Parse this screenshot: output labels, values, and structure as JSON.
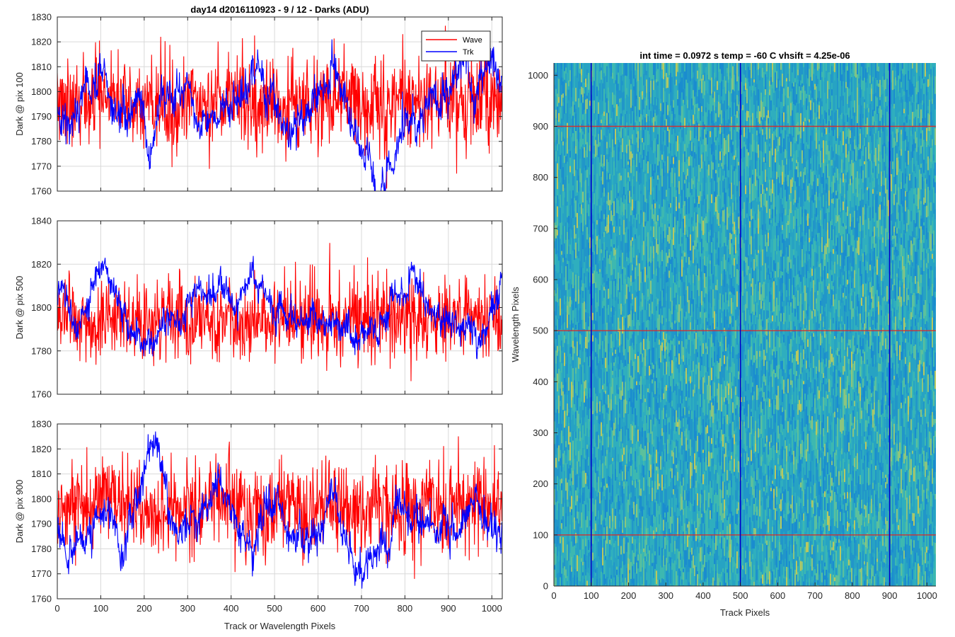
{
  "figure": {
    "suptitle": "day14 d2016110923 - 9 / 12 - Darks (ADU)",
    "heatmap_title": "int time = 0.0972 s    temp = -60 C    vhsift = 4.25e-06"
  },
  "colors": {
    "wave": "#ff0000",
    "trk": "#0000ff",
    "grid": "#d9d9d9",
    "heatmap_base": "#2a9fc6",
    "marker_h": "#d03030",
    "marker_v": "#0000c8"
  },
  "chart_data": [
    {
      "type": "line",
      "id": "top",
      "title": "day14 d2016110923 - 9 / 12 - Darks (ADU)",
      "xlabel": "",
      "ylabel": "Dark @ pix 100",
      "xlim": [
        0,
        1024
      ],
      "ylim": [
        1760,
        1830
      ],
      "xticks": [
        0,
        100,
        200,
        300,
        400,
        500,
        600,
        700,
        800,
        900,
        1000
      ],
      "yticks": [
        1760,
        1770,
        1780,
        1790,
        1800,
        1810,
        1820,
        1830
      ],
      "show_xtick_labels": false,
      "grid": true,
      "legend": {
        "placement": "top-right",
        "entries": [
          "Wave",
          "Trk"
        ]
      },
      "series": [
        {
          "name": "Wave",
          "color": "#ff0000",
          "mean": 1796,
          "noise": 9,
          "drift": 2,
          "min": 1761,
          "max": 1827,
          "seed": 11
        },
        {
          "name": "Trk",
          "color": "#0000ff",
          "mean": 1795,
          "noise": 3,
          "drift": 7,
          "min": 1760,
          "max": 1821,
          "seed": 23,
          "anchors": [
            [
              0,
              1795
            ],
            [
              40,
              1800
            ],
            [
              70,
              1803
            ],
            [
              100,
              1808
            ],
            [
              140,
              1795
            ],
            [
              170,
              1790
            ],
            [
              210,
              1778
            ],
            [
              240,
              1800
            ],
            [
              270,
              1790
            ],
            [
              300,
              1795
            ],
            [
              330,
              1785
            ],
            [
              380,
              1798
            ],
            [
              420,
              1790
            ],
            [
              460,
              1805
            ],
            [
              500,
              1795
            ],
            [
              550,
              1785
            ],
            [
              600,
              1800
            ],
            [
              640,
              1795
            ],
            [
              680,
              1790
            ],
            [
              720,
              1778
            ],
            [
              750,
              1770
            ],
            [
              780,
              1785
            ],
            [
              830,
              1795
            ],
            [
              880,
              1790
            ],
            [
              920,
              1810
            ],
            [
              960,
              1808
            ],
            [
              1000,
              1815
            ],
            [
              1024,
              1812
            ]
          ]
        }
      ]
    },
    {
      "type": "line",
      "id": "middle",
      "xlabel": "",
      "ylabel": "Dark @ pix 500",
      "xlim": [
        0,
        1024
      ],
      "ylim": [
        1760,
        1840
      ],
      "xticks": [
        0,
        100,
        200,
        300,
        400,
        500,
        600,
        700,
        800,
        900,
        1000
      ],
      "yticks": [
        1760,
        1780,
        1800,
        1820,
        1840
      ],
      "show_xtick_labels": false,
      "grid": true,
      "series": [
        {
          "name": "Wave",
          "color": "#ff0000",
          "mean": 1795,
          "noise": 9,
          "drift": 2,
          "min": 1762,
          "max": 1832,
          "seed": 37
        },
        {
          "name": "Trk",
          "color": "#0000ff",
          "mean": 1795,
          "noise": 3,
          "drift": 6,
          "min": 1768,
          "max": 1828,
          "seed": 41,
          "anchors": [
            [
              0,
              1800
            ],
            [
              50,
              1795
            ],
            [
              100,
              1818
            ],
            [
              130,
              1812
            ],
            [
              170,
              1790
            ],
            [
              210,
              1785
            ],
            [
              260,
              1790
            ],
            [
              300,
              1796
            ],
            [
              350,
              1790
            ],
            [
              400,
              1800
            ],
            [
              450,
              1815
            ],
            [
              500,
              1798
            ],
            [
              550,
              1790
            ],
            [
              600,
              1795
            ],
            [
              640,
              1790
            ],
            [
              700,
              1790
            ],
            [
              760,
              1795
            ],
            [
              800,
              1812
            ],
            [
              850,
              1800
            ],
            [
              900,
              1793
            ],
            [
              950,
              1790
            ],
            [
              990,
              1785
            ],
            [
              1024,
              1808
            ]
          ]
        }
      ]
    },
    {
      "type": "line",
      "id": "bottom",
      "xlabel": "Track or Wavelength Pixels",
      "ylabel": "Dark @ pix 900",
      "xlim": [
        0,
        1024
      ],
      "ylim": [
        1760,
        1830
      ],
      "xticks": [
        0,
        100,
        200,
        300,
        400,
        500,
        600,
        700,
        800,
        900,
        1000
      ],
      "yticks": [
        1760,
        1770,
        1780,
        1790,
        1800,
        1810,
        1820,
        1830
      ],
      "show_xtick_labels": true,
      "grid": true,
      "series": [
        {
          "name": "Wave",
          "color": "#ff0000",
          "mean": 1797,
          "noise": 9,
          "drift": 2,
          "min": 1765,
          "max": 1826,
          "seed": 53
        },
        {
          "name": "Trk",
          "color": "#0000ff",
          "mean": 1790,
          "noise": 3,
          "drift": 6,
          "min": 1761,
          "max": 1827,
          "seed": 61,
          "anchors": [
            [
              0,
              1790
            ],
            [
              50,
              1795
            ],
            [
              100,
              1797
            ],
            [
              150,
              1778
            ],
            [
              180,
              1792
            ],
            [
              215,
              1820
            ],
            [
              250,
              1790
            ],
            [
              300,
              1792
            ],
            [
              350,
              1785
            ],
            [
              400,
              1790
            ],
            [
              450,
              1785
            ],
            [
              500,
              1790
            ],
            [
              540,
              1782
            ],
            [
              600,
              1785
            ],
            [
              620,
              1800
            ],
            [
              660,
              1790
            ],
            [
              700,
              1770
            ],
            [
              750,
              1778
            ],
            [
              800,
              1798
            ],
            [
              840,
              1790
            ],
            [
              900,
              1788
            ],
            [
              950,
              1790
            ],
            [
              1000,
              1783
            ],
            [
              1024,
              1787
            ]
          ]
        }
      ]
    },
    {
      "type": "heatmap",
      "id": "image",
      "title": "int time = 0.0972 s    temp = -60 C    vhsift = 4.25e-06",
      "xlabel": "Track Pixels",
      "ylabel": "Wavelength Pixels",
      "xlim": [
        0,
        1024
      ],
      "ylim": [
        0,
        1024
      ],
      "xticks": [
        0,
        100,
        200,
        300,
        400,
        500,
        600,
        700,
        800,
        900,
        1000
      ],
      "yticks": [
        0,
        100,
        200,
        300,
        400,
        500,
        600,
        700,
        800,
        900,
        1000
      ],
      "grid": false,
      "colormap": "parula",
      "horizontal_markers": [
        100,
        500,
        900
      ],
      "vertical_markers": [
        100,
        500,
        900
      ]
    }
  ]
}
